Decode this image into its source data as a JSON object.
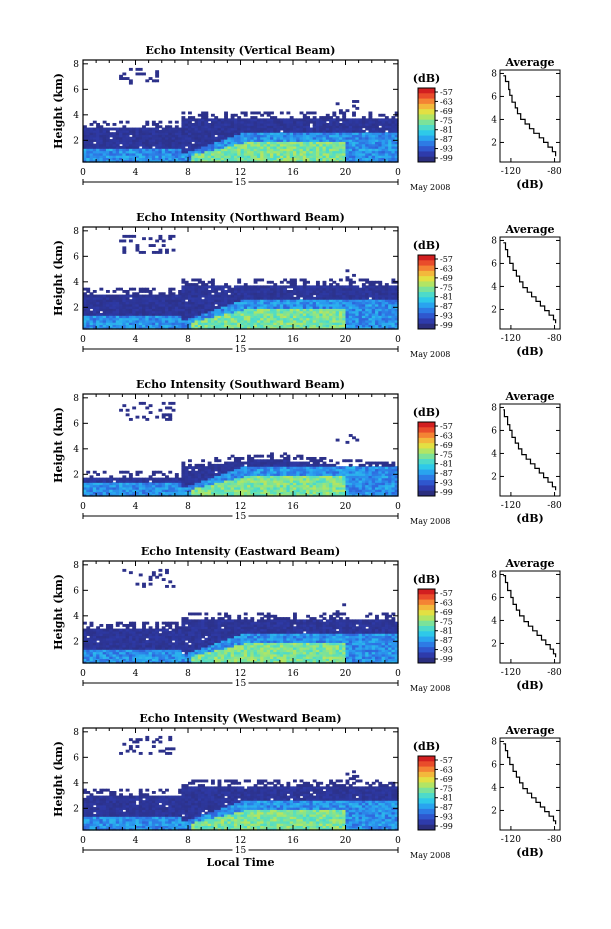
{
  "chart_data": [
    {
      "type": "heatmap",
      "title": "Echo Intensity (Vertical Beam)",
      "ylabel": "Height (km)",
      "x_ticks": [
        "0",
        "4",
        "8",
        "12",
        "16",
        "20",
        "0"
      ],
      "y_ticks": [
        "2",
        "4",
        "6",
        "8"
      ],
      "xlim": [
        0,
        24
      ],
      "ylim": [
        0.3,
        8.3
      ],
      "date_label": "15",
      "month_label": "May 2008",
      "colorbar": {
        "unit": "(dB)",
        "ticks": [
          "-57",
          "-63",
          "-69",
          "-75",
          "-81",
          "-87",
          "-93",
          "-99"
        ],
        "range": [
          -99,
          -57
        ]
      },
      "profile": {
        "type": "line",
        "title": "Average",
        "xlabel": "(dB)",
        "x_ticks": [
          "-120",
          "-80"
        ],
        "y_ticks": [
          "2",
          "4",
          "6",
          "8"
        ],
        "xlim": [
          -130,
          -75
        ],
        "ylim": [
          0.3,
          8.3
        ],
        "x": [
          -127,
          -125,
          -122,
          -121,
          -119,
          -116,
          -114,
          -111,
          -107,
          -103,
          -99,
          -94,
          -90,
          -86,
          -82,
          -79
        ],
        "y": [
          7.8,
          7.3,
          6.6,
          6.1,
          5.5,
          5.0,
          4.5,
          4.0,
          3.6,
          3.2,
          2.8,
          2.4,
          2.0,
          1.6,
          1.2,
          0.8
        ]
      }
    },
    {
      "type": "heatmap",
      "title": "Echo Intensity (Northward Beam)",
      "ylabel": "Height (km)",
      "x_ticks": [
        "0",
        "4",
        "8",
        "12",
        "16",
        "20",
        "0"
      ],
      "y_ticks": [
        "2",
        "4",
        "6",
        "8"
      ],
      "xlim": [
        0,
        24
      ],
      "ylim": [
        0.3,
        8.3
      ],
      "date_label": "15",
      "month_label": "May 2008",
      "colorbar": {
        "unit": "(dB)",
        "ticks": [
          "-57",
          "-63",
          "-69",
          "-75",
          "-81",
          "-87",
          "-93",
          "-99"
        ],
        "range": [
          -99,
          -57
        ]
      },
      "profile": {
        "type": "line",
        "title": "Average",
        "xlabel": "(dB)",
        "x_ticks": [
          "-120",
          "-80"
        ],
        "y_ticks": [
          "2",
          "4",
          "6",
          "8"
        ],
        "xlim": [
          -130,
          -75
        ],
        "ylim": [
          0.3,
          8.3
        ],
        "x": [
          -127,
          -125,
          -123,
          -121,
          -118,
          -115,
          -112,
          -109,
          -105,
          -101,
          -97,
          -93,
          -89,
          -85,
          -81,
          -79
        ],
        "y": [
          7.8,
          7.2,
          6.6,
          6.0,
          5.4,
          4.9,
          4.4,
          3.9,
          3.5,
          3.1,
          2.7,
          2.3,
          1.9,
          1.5,
          1.1,
          0.8
        ]
      }
    },
    {
      "type": "heatmap",
      "title": "Echo Intensity (Southward Beam)",
      "ylabel": "Height (km)",
      "x_ticks": [
        "0",
        "4",
        "8",
        "12",
        "16",
        "20",
        "0"
      ],
      "y_ticks": [
        "2",
        "4",
        "6",
        "8"
      ],
      "xlim": [
        0,
        24
      ],
      "ylim": [
        0.3,
        8.3
      ],
      "date_label": "15",
      "month_label": "May 2008",
      "colorbar": {
        "unit": "(dB)",
        "ticks": [
          "-57",
          "-63",
          "-69",
          "-75",
          "-81",
          "-87",
          "-93",
          "-99"
        ],
        "range": [
          -99,
          -57
        ]
      },
      "profile": {
        "type": "line",
        "title": "Average",
        "xlabel": "(dB)",
        "x_ticks": [
          "-120",
          "-80"
        ],
        "y_ticks": [
          "2",
          "4",
          "6",
          "8"
        ],
        "xlim": [
          -130,
          -75
        ],
        "ylim": [
          0.3,
          8.3
        ],
        "x": [
          -127,
          -126,
          -123,
          -121,
          -119,
          -116,
          -113,
          -110,
          -106,
          -102,
          -98,
          -94,
          -90,
          -86,
          -82,
          -79
        ],
        "y": [
          7.8,
          7.2,
          6.5,
          6.0,
          5.4,
          4.9,
          4.4,
          3.9,
          3.5,
          3.1,
          2.7,
          2.3,
          1.9,
          1.5,
          1.1,
          0.8
        ]
      }
    },
    {
      "type": "heatmap",
      "title": "Echo Intensity (Eastward Beam)",
      "ylabel": "Height (km)",
      "x_ticks": [
        "0",
        "4",
        "8",
        "12",
        "16",
        "20",
        "0"
      ],
      "y_ticks": [
        "2",
        "4",
        "6",
        "8"
      ],
      "xlim": [
        0,
        24
      ],
      "ylim": [
        0.3,
        8.3
      ],
      "date_label": "15",
      "month_label": "May 2008",
      "colorbar": {
        "unit": "(dB)",
        "ticks": [
          "-57",
          "-63",
          "-69",
          "-75",
          "-81",
          "-87",
          "-93",
          "-99"
        ],
        "range": [
          -99,
          -57
        ]
      },
      "profile": {
        "type": "line",
        "title": "Average",
        "xlabel": "(dB)",
        "x_ticks": [
          "-120",
          "-80"
        ],
        "y_ticks": [
          "2",
          "4",
          "6",
          "8"
        ],
        "xlim": [
          -130,
          -75
        ],
        "ylim": [
          0.3,
          8.3
        ],
        "x": [
          -127,
          -125,
          -123,
          -120,
          -118,
          -115,
          -112,
          -108,
          -104,
          -100,
          -96,
          -92,
          -88,
          -84,
          -81,
          -79
        ],
        "y": [
          7.9,
          7.3,
          6.6,
          6.0,
          5.4,
          4.9,
          4.4,
          3.9,
          3.5,
          3.1,
          2.7,
          2.3,
          1.9,
          1.5,
          1.1,
          0.8
        ]
      }
    },
    {
      "type": "heatmap",
      "title": "Echo Intensity (Westward Beam)",
      "ylabel": "Height (km)",
      "x_ticks": [
        "0",
        "4",
        "8",
        "12",
        "16",
        "20",
        "0"
      ],
      "y_ticks": [
        "2",
        "4",
        "6",
        "8"
      ],
      "xlim": [
        0,
        24
      ],
      "ylim": [
        0.3,
        8.3
      ],
      "date_label": "15",
      "month_label": "May 2008",
      "xlabel": "Local Time",
      "colorbar": {
        "unit": "(dB)",
        "ticks": [
          "-57",
          "-63",
          "-69",
          "-75",
          "-81",
          "-87",
          "-93",
          "-99"
        ],
        "range": [
          -99,
          -57
        ]
      },
      "profile": {
        "type": "line",
        "title": "Average",
        "xlabel": "(dB)",
        "x_ticks": [
          "-120",
          "-80"
        ],
        "y_ticks": [
          "2",
          "4",
          "6",
          "8"
        ],
        "xlim": [
          -130,
          -75
        ],
        "ylim": [
          0.3,
          8.3
        ],
        "x": [
          -127,
          -125,
          -123,
          -121,
          -118,
          -115,
          -112,
          -109,
          -105,
          -101,
          -97,
          -93,
          -89,
          -85,
          -81,
          -79
        ],
        "y": [
          7.8,
          7.2,
          6.6,
          6.0,
          5.4,
          4.9,
          4.4,
          3.9,
          3.5,
          3.1,
          2.7,
          2.3,
          1.9,
          1.5,
          1.1,
          0.8
        ]
      }
    }
  ],
  "colors": {
    "colormap": [
      "#2b2e7e",
      "#2f3fb8",
      "#2f6be0",
      "#29a0f0",
      "#2fd0e8",
      "#5fe0b8",
      "#a8e66a",
      "#e8e040",
      "#f8a63a",
      "#f05a2e",
      "#d21f20"
    ],
    "background": "#ffffff",
    "ink": "#000000"
  }
}
